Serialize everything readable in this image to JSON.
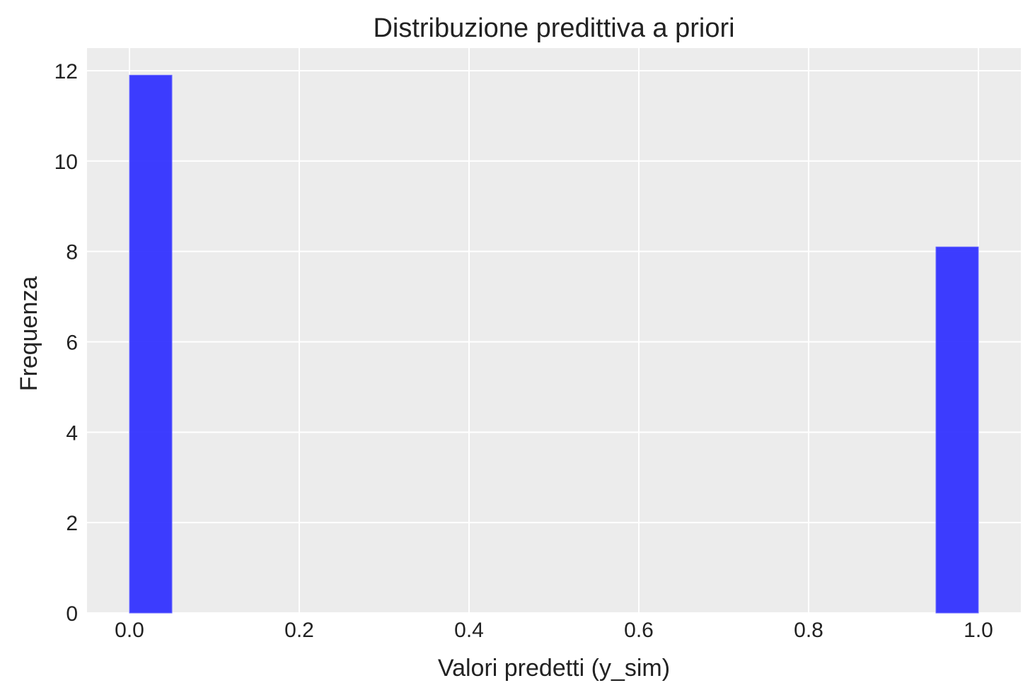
{
  "chart_data": {
    "type": "bar",
    "title": "Distribuzione predittiva a priori",
    "xlabel": "Valori predetti (y_sim)",
    "ylabel": "Frequenza",
    "xlim": [
      -0.05,
      1.05
    ],
    "ylim": [
      0,
      12.5
    ],
    "xticks": [
      0.0,
      0.2,
      0.4,
      0.6,
      0.8,
      1.0
    ],
    "xtick_labels": [
      "0.0",
      "0.2",
      "0.4",
      "0.6",
      "0.8",
      "1.0"
    ],
    "yticks": [
      0,
      2,
      4,
      6,
      8,
      10,
      12
    ],
    "ytick_labels": [
      "0",
      "2",
      "4",
      "6",
      "8",
      "10",
      "12"
    ],
    "grid": true,
    "bars": [
      {
        "x0": 0.0,
        "x1": 0.05,
        "value": 11.9
      },
      {
        "x0": 0.95,
        "x1": 1.0,
        "value": 8.1
      }
    ],
    "colors": {
      "bar": "#3333ff",
      "plot_background": "#ececec",
      "grid": "#ffffff",
      "text": "#222222"
    }
  }
}
